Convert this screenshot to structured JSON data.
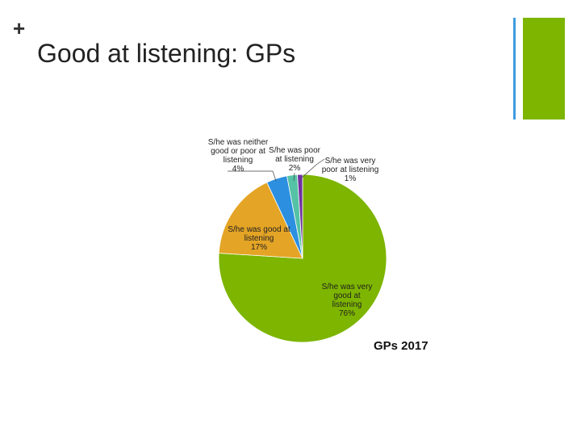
{
  "chart_data": {
    "type": "pie",
    "marker": "+",
    "title": "Good at listening: GPs",
    "caption": "GPs 2017",
    "categories": [
      "S/he was very good at listening",
      "S/he was good at listening",
      "S/he was neither good or poor at listening",
      "S/he was poor at listening",
      "S/he was very poor at listening"
    ],
    "values": [
      76,
      17,
      4,
      2,
      1
    ],
    "value_labels": [
      "76%",
      "17%",
      "4%",
      "2%",
      "1%"
    ],
    "colors": [
      "#7db500",
      "#e4a425",
      "#2c8fe0",
      "#55c2a5",
      "#7030a0"
    ]
  }
}
